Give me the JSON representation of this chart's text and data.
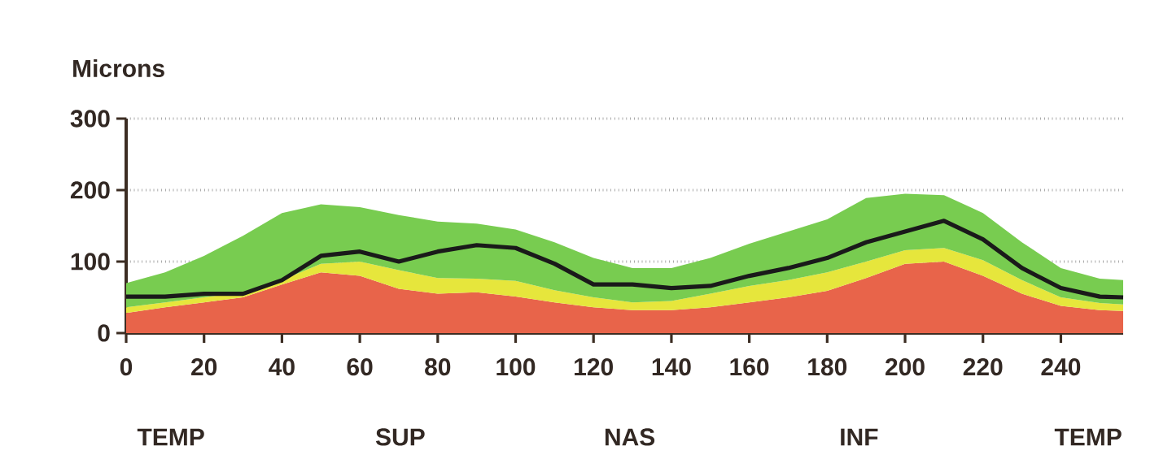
{
  "chart_data": {
    "type": "area",
    "stacked": true,
    "ylabel": "Microns",
    "x": [
      0,
      10,
      20,
      30,
      40,
      50,
      60,
      70,
      80,
      90,
      100,
      110,
      120,
      130,
      140,
      150,
      160,
      170,
      180,
      190,
      200,
      210,
      220,
      230,
      240,
      250,
      256
    ],
    "series": [
      {
        "color": "#e8644a",
        "values": [
          28,
          36,
          43,
          50,
          68,
          85,
          80,
          62,
          55,
          57,
          51,
          43,
          36,
          32,
          32,
          36,
          43,
          50,
          59,
          77,
          97,
          100,
          80,
          55,
          38,
          32,
          31
        ]
      },
      {
        "color": "#e6e63c",
        "values": [
          8,
          7,
          7,
          7,
          6,
          12,
          20,
          26,
          22,
          19,
          22,
          17,
          14,
          11,
          13,
          19,
          23,
          24,
          26,
          23,
          19,
          19,
          22,
          19,
          12,
          10,
          9
        ]
      },
      {
        "color": "#78cc50",
        "values": [
          34,
          42,
          58,
          79,
          94,
          83,
          76,
          77,
          79,
          77,
          72,
          67,
          55,
          48,
          46,
          50,
          59,
          68,
          74,
          89,
          79,
          74,
          66,
          53,
          41,
          34,
          34
        ]
      },
      {
        "type": "line",
        "color": "#1a1a1a",
        "values": [
          51,
          51,
          55,
          55,
          74,
          108,
          114,
          100,
          114,
          123,
          119,
          97,
          68,
          68,
          63,
          66,
          80,
          91,
          105,
          127,
          142,
          157,
          131,
          91,
          63,
          51,
          50
        ]
      }
    ],
    "xlim": [
      0,
      256
    ],
    "ylim": [
      0,
      300
    ],
    "xticks": [
      0,
      20,
      40,
      60,
      80,
      100,
      120,
      140,
      160,
      180,
      200,
      220,
      240
    ],
    "yticks": [
      0,
      100,
      200,
      300
    ],
    "grid": "y",
    "line_style": "solid",
    "marker": "none",
    "annotations": [
      "TEMP",
      "SUP",
      "NAS",
      "INF",
      "TEMP"
    ]
  }
}
